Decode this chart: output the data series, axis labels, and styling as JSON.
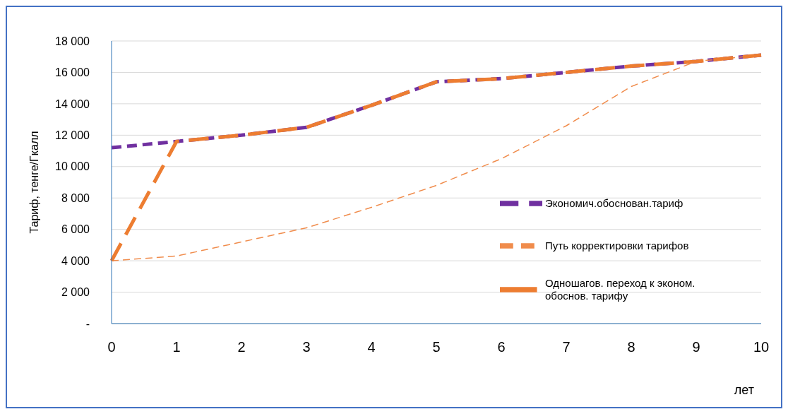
{
  "chart_data": {
    "type": "line",
    "ylabel": "Тариф, тенге/Гкалл",
    "xlabel": "лет",
    "categories": [
      "0",
      "1",
      "2",
      "3",
      "4",
      "5",
      "6",
      "7",
      "8",
      "9",
      "10"
    ],
    "series": [
      {
        "name": "Экономич.обоснован.тариф",
        "color": "#7030a0",
        "line_style": "dashed",
        "values": [
          11200,
          11600,
          12000,
          12500,
          13900,
          15400,
          15600,
          16000,
          16400,
          16700,
          17100
        ]
      },
      {
        "name": "Путь корректировки тарифов",
        "color": "#f08c4c",
        "line_style": "dashed",
        "values": [
          4000,
          4300,
          5200,
          6100,
          7400,
          8800,
          10500,
          12600,
          15100,
          16700,
          17100
        ]
      },
      {
        "name": "Одношагов. переход к эконом. обоснов. тарифу",
        "color": "#ed7d31",
        "line_style": "dashed",
        "values": [
          4000,
          11600,
          12000,
          12500,
          13900,
          15400,
          15600,
          16000,
          16400,
          16700,
          17100
        ]
      }
    ],
    "ylim": [
      0,
      18000
    ],
    "yticks": [
      {
        "value": 0,
        "label": "-"
      },
      {
        "value": 2000,
        "label": "2 000"
      },
      {
        "value": 4000,
        "label": "4 000"
      },
      {
        "value": 6000,
        "label": "6 000"
      },
      {
        "value": 8000,
        "label": "8 000"
      },
      {
        "value": 10000,
        "label": "10 000"
      },
      {
        "value": 12000,
        "label": "12 000"
      },
      {
        "value": 14000,
        "label": "14 000"
      },
      {
        "value": 16000,
        "label": "16 000"
      },
      {
        "value": 18000,
        "label": "18 000"
      }
    ],
    "grid": "y",
    "legend": "right",
    "marker": "none"
  }
}
